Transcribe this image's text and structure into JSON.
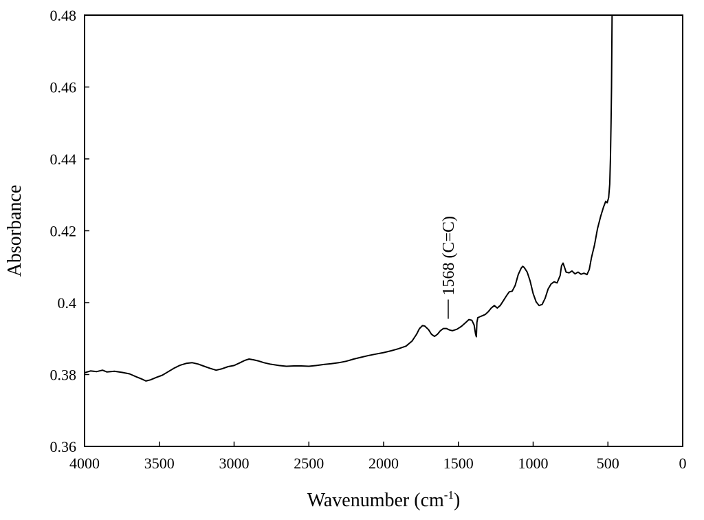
{
  "chart_data": {
    "type": "line",
    "title": "",
    "xlabel": "Wavenumber (cm",
    "xlabel_sup": "-1",
    "xlabel_close": ")",
    "ylabel": "Absorbance",
    "xlim": [
      4000,
      0
    ],
    "ylim": [
      0.36,
      0.48
    ],
    "x_reversed": true,
    "grid": false,
    "x_ticks": [
      {
        "value": 4000,
        "label": "4000"
      },
      {
        "value": 3500,
        "label": "3500"
      },
      {
        "value": 3000,
        "label": "3000"
      },
      {
        "value": 2500,
        "label": "2500"
      },
      {
        "value": 2000,
        "label": "2000"
      },
      {
        "value": 1500,
        "label": "1500"
      },
      {
        "value": 1000,
        "label": "1000"
      },
      {
        "value": 500,
        "label": "500"
      },
      {
        "value": 0,
        "label": "0"
      }
    ],
    "y_ticks": [
      {
        "value": 0.36,
        "label": "0.36"
      },
      {
        "value": 0.38,
        "label": "0.38"
      },
      {
        "value": 0.4,
        "label": "0.4"
      },
      {
        "value": 0.42,
        "label": "0.42"
      },
      {
        "value": 0.44,
        "label": "0.44"
      },
      {
        "value": 0.46,
        "label": "0.46"
      },
      {
        "value": 0.48,
        "label": "0.48"
      }
    ],
    "annotations": [
      {
        "text": "1568 (C=C)",
        "x": 1568,
        "y": 0.3955,
        "orientation": "vertical"
      }
    ],
    "series": [
      {
        "color": "#000000",
        "points": [
          [
            4000,
            0.3805
          ],
          [
            3960,
            0.381
          ],
          [
            3920,
            0.3808
          ],
          [
            3880,
            0.3812
          ],
          [
            3850,
            0.3807
          ],
          [
            3800,
            0.3809
          ],
          [
            3750,
            0.3806
          ],
          [
            3700,
            0.3802
          ],
          [
            3650,
            0.3793
          ],
          [
            3620,
            0.3788
          ],
          [
            3590,
            0.3782
          ],
          [
            3560,
            0.3785
          ],
          [
            3520,
            0.3792
          ],
          [
            3480,
            0.3798
          ],
          [
            3440,
            0.3808
          ],
          [
            3400,
            0.3818
          ],
          [
            3360,
            0.3826
          ],
          [
            3320,
            0.3831
          ],
          [
            3280,
            0.3833
          ],
          [
            3240,
            0.3829
          ],
          [
            3200,
            0.3823
          ],
          [
            3160,
            0.3817
          ],
          [
            3120,
            0.3812
          ],
          [
            3080,
            0.3816
          ],
          [
            3040,
            0.3822
          ],
          [
            3000,
            0.3825
          ],
          [
            2960,
            0.3833
          ],
          [
            2930,
            0.3839
          ],
          [
            2900,
            0.3843
          ],
          [
            2870,
            0.3841
          ],
          [
            2840,
            0.3838
          ],
          [
            2800,
            0.3833
          ],
          [
            2760,
            0.3829
          ],
          [
            2700,
            0.3825
          ],
          [
            2650,
            0.3823
          ],
          [
            2600,
            0.3824
          ],
          [
            2550,
            0.3824
          ],
          [
            2500,
            0.3823
          ],
          [
            2450,
            0.3825
          ],
          [
            2400,
            0.3828
          ],
          [
            2350,
            0.383
          ],
          [
            2300,
            0.3833
          ],
          [
            2250,
            0.3837
          ],
          [
            2200,
            0.3843
          ],
          [
            2150,
            0.3848
          ],
          [
            2100,
            0.3853
          ],
          [
            2050,
            0.3857
          ],
          [
            2000,
            0.3861
          ],
          [
            1950,
            0.3866
          ],
          [
            1900,
            0.3872
          ],
          [
            1850,
            0.3879
          ],
          [
            1810,
            0.3893
          ],
          [
            1780,
            0.3912
          ],
          [
            1760,
            0.3928
          ],
          [
            1740,
            0.3936
          ],
          [
            1725,
            0.3935
          ],
          [
            1700,
            0.3925
          ],
          [
            1680,
            0.3912
          ],
          [
            1660,
            0.3906
          ],
          [
            1640,
            0.3912
          ],
          [
            1620,
            0.3922
          ],
          [
            1600,
            0.3928
          ],
          [
            1580,
            0.3928
          ],
          [
            1560,
            0.3924
          ],
          [
            1540,
            0.3922
          ],
          [
            1510,
            0.3926
          ],
          [
            1480,
            0.3934
          ],
          [
            1450,
            0.3945
          ],
          [
            1430,
            0.3953
          ],
          [
            1410,
            0.3951
          ],
          [
            1395,
            0.3938
          ],
          [
            1385,
            0.3912
          ],
          [
            1380,
            0.3905
          ],
          [
            1376,
            0.3945
          ],
          [
            1370,
            0.3958
          ],
          [
            1350,
            0.3962
          ],
          [
            1320,
            0.3967
          ],
          [
            1300,
            0.3975
          ],
          [
            1280,
            0.3985
          ],
          [
            1260,
            0.3992
          ],
          [
            1240,
            0.3985
          ],
          [
            1220,
            0.3992
          ],
          [
            1200,
            0.4005
          ],
          [
            1180,
            0.4018
          ],
          [
            1160,
            0.403
          ],
          [
            1140,
            0.4032
          ],
          [
            1120,
            0.4048
          ],
          [
            1100,
            0.4078
          ],
          [
            1080,
            0.4096
          ],
          [
            1070,
            0.4101
          ],
          [
            1060,
            0.4098
          ],
          [
            1040,
            0.4085
          ],
          [
            1020,
            0.406
          ],
          [
            1000,
            0.4025
          ],
          [
            980,
            0.4002
          ],
          [
            960,
            0.3992
          ],
          [
            940,
            0.3995
          ],
          [
            920,
            0.4012
          ],
          [
            900,
            0.4038
          ],
          [
            880,
            0.4052
          ],
          [
            860,
            0.4058
          ],
          [
            840,
            0.4055
          ],
          [
            820,
            0.4075
          ],
          [
            810,
            0.4103
          ],
          [
            800,
            0.411
          ],
          [
            790,
            0.4098
          ],
          [
            780,
            0.4085
          ],
          [
            760,
            0.4083
          ],
          [
            740,
            0.4088
          ],
          [
            720,
            0.408
          ],
          [
            700,
            0.4085
          ],
          [
            680,
            0.4079
          ],
          [
            660,
            0.4082
          ],
          [
            640,
            0.4078
          ],
          [
            625,
            0.4092
          ],
          [
            610,
            0.4125
          ],
          [
            590,
            0.416
          ],
          [
            570,
            0.4205
          ],
          [
            550,
            0.4238
          ],
          [
            530,
            0.4265
          ],
          [
            515,
            0.4282
          ],
          [
            505,
            0.4278
          ],
          [
            495,
            0.4292
          ],
          [
            488,
            0.433
          ],
          [
            483,
            0.44
          ],
          [
            479,
            0.45
          ],
          [
            476,
            0.46
          ],
          [
            474,
            0.47
          ],
          [
            472,
            0.48
          ]
        ]
      }
    ]
  }
}
